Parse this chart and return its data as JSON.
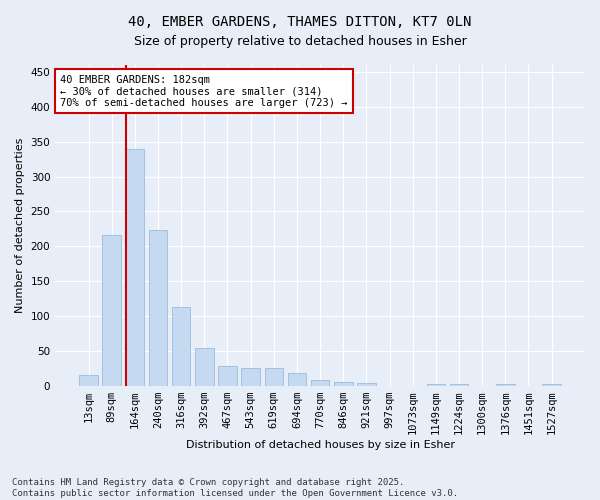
{
  "title_line1": "40, EMBER GARDENS, THAMES DITTON, KT7 0LN",
  "title_line2": "Size of property relative to detached houses in Esher",
  "xlabel": "Distribution of detached houses by size in Esher",
  "ylabel": "Number of detached properties",
  "bar_color": "#c5d9f0",
  "bar_edge_color": "#8ab4d8",
  "background_color": "#e8eef8",
  "grid_color": "#ffffff",
  "categories": [
    "13sqm",
    "89sqm",
    "164sqm",
    "240sqm",
    "316sqm",
    "392sqm",
    "467sqm",
    "543sqm",
    "619sqm",
    "694sqm",
    "770sqm",
    "846sqm",
    "921sqm",
    "997sqm",
    "1073sqm",
    "1149sqm",
    "1224sqm",
    "1300sqm",
    "1376sqm",
    "1451sqm",
    "1527sqm"
  ],
  "values": [
    15,
    216,
    340,
    224,
    113,
    54,
    28,
    26,
    26,
    18,
    9,
    6,
    4,
    0,
    0,
    3,
    2,
    0,
    2,
    0,
    2
  ],
  "red_line_index": 2,
  "annotation_text": "40 EMBER GARDENS: 182sqm\n← 30% of detached houses are smaller (314)\n70% of semi-detached houses are larger (723) →",
  "annotation_box_color": "#ffffff",
  "annotation_box_edge": "#cc0000",
  "red_line_color": "#cc0000",
  "ylim": [
    0,
    460
  ],
  "yticks": [
    0,
    50,
    100,
    150,
    200,
    250,
    300,
    350,
    400,
    450
  ],
  "footnote": "Contains HM Land Registry data © Crown copyright and database right 2025.\nContains public sector information licensed under the Open Government Licence v3.0.",
  "title_fontsize": 10,
  "subtitle_fontsize": 9,
  "axis_label_fontsize": 8,
  "tick_fontsize": 7.5,
  "annotation_fontsize": 7.5,
  "footnote_fontsize": 6.5
}
